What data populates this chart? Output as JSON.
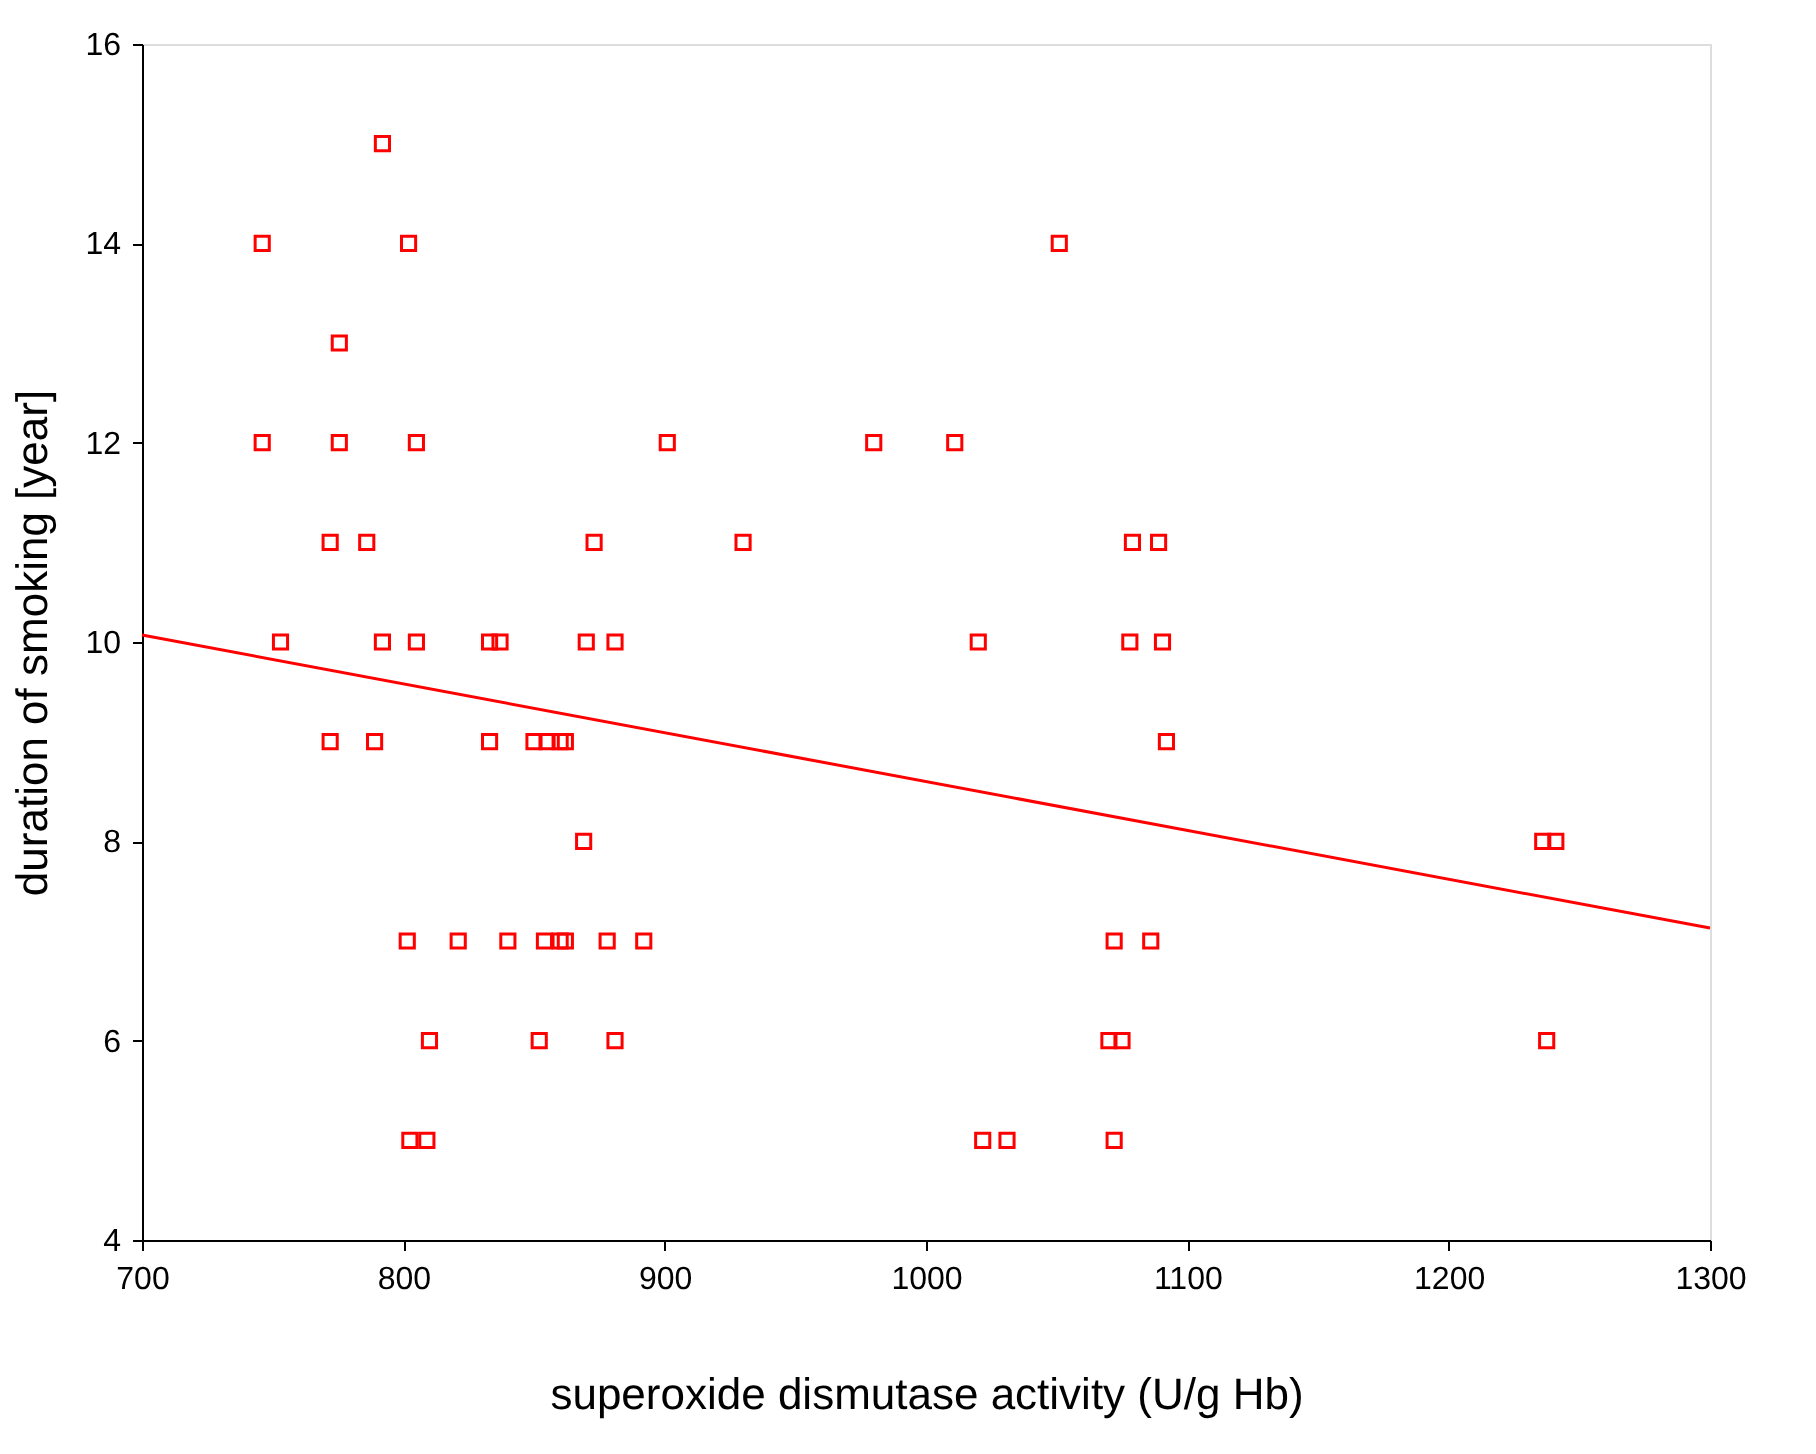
{
  "chart_data": {
    "type": "scatter",
    "xlabel": "superoxide dismutase activity (U/g Hb)",
    "ylabel": "duration of smoking [year]",
    "xlim": [
      700,
      1300
    ],
    "ylim": [
      4,
      16
    ],
    "xticks": [
      700,
      800,
      900,
      1000,
      1100,
      1200,
      1300
    ],
    "yticks": [
      4,
      6,
      8,
      10,
      12,
      14,
      16
    ],
    "grid": false,
    "series": [
      {
        "marker": "square",
        "color": "#ff0000",
        "x": [
          792,
          746,
          802,
          775.5,
          746,
          775.5,
          805,
          901,
          772,
          786,
          873,
          930,
          753,
          792,
          805,
          833,
          837,
          870,
          881,
          772,
          789,
          833,
          850,
          855,
          860,
          862,
          869,
          801.5,
          821,
          840,
          854,
          860,
          862,
          878,
          892,
          810,
          852,
          881,
          802.5,
          809,
          1051,
          980,
          1011,
          1079,
          1089,
          1020,
          1078,
          1090.5,
          1092,
          1236,
          1241,
          1072,
          1086,
          1070,
          1075,
          1237.5,
          1021.7,
          1031,
          1072
        ],
        "values": [
          15,
          14,
          14,
          13,
          12,
          12,
          12,
          12,
          11,
          11,
          11,
          11,
          10,
          10,
          10,
          10,
          10,
          10,
          10,
          9,
          9,
          9,
          9,
          9,
          9,
          9,
          8,
          7,
          7,
          7,
          7,
          7,
          7,
          7,
          7,
          6,
          6,
          6,
          5,
          5,
          14,
          12,
          12,
          11,
          11,
          10,
          10,
          10,
          9,
          8,
          8,
          7,
          7,
          6,
          6,
          6,
          5,
          5,
          5
        ]
      },
      {
        "type": "line",
        "color": "#ff0000",
        "x": [
          700,
          1300
        ],
        "values": [
          10.07,
          7.13
        ]
      }
    ]
  }
}
